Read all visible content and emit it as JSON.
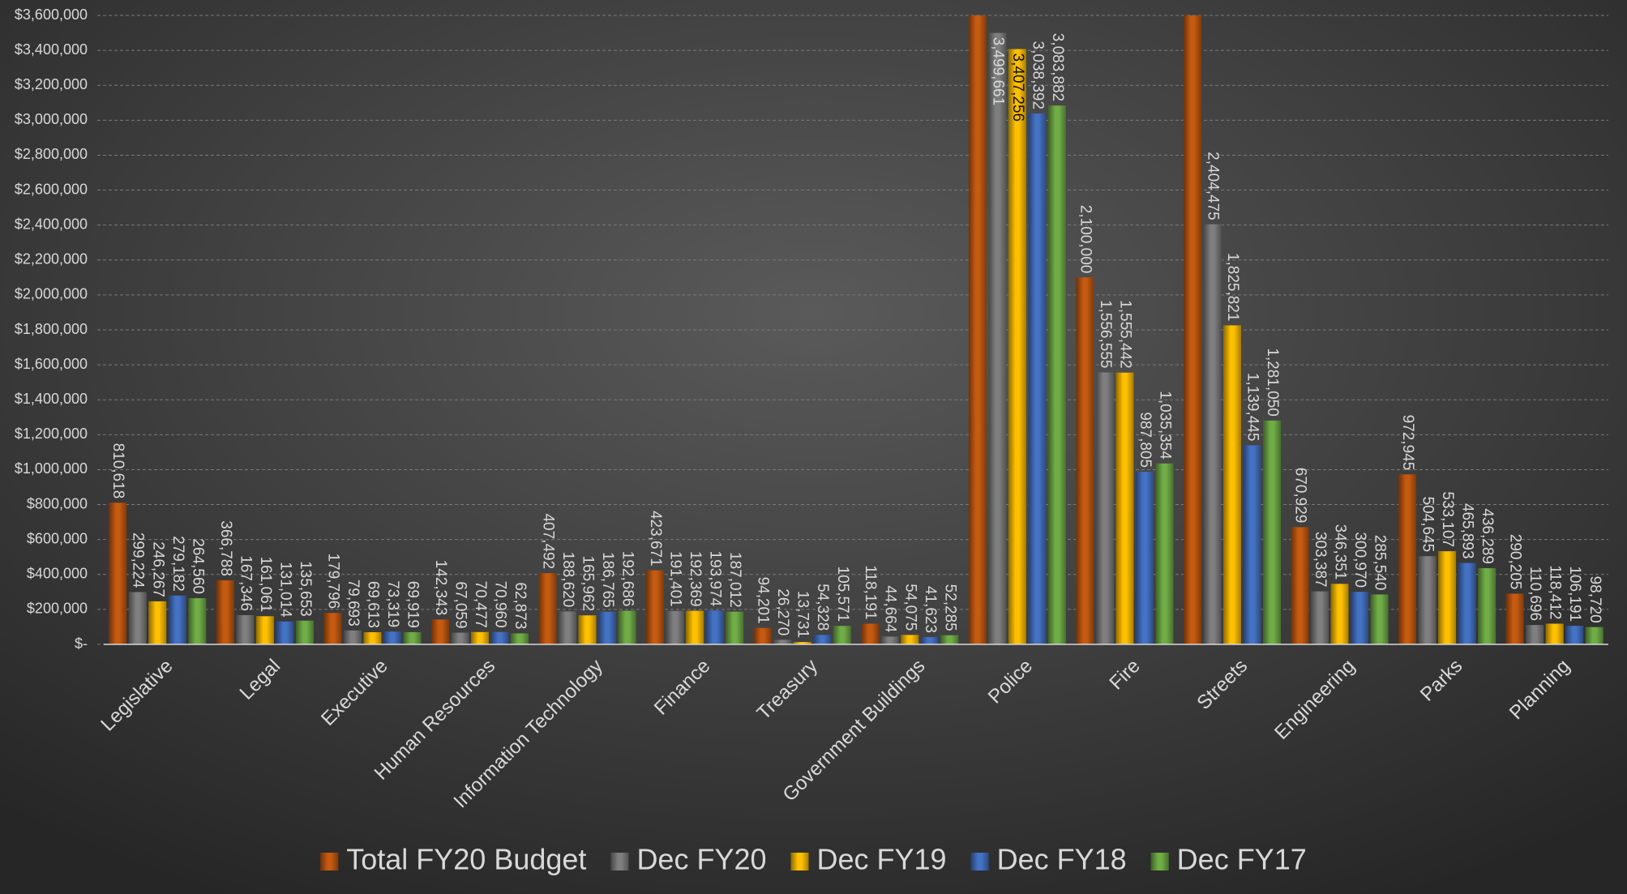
{
  "chart_data": {
    "type": "bar",
    "categories": [
      "Legislative",
      "Legal",
      "Executive",
      "Human Resources",
      "Information Technology",
      "Finance",
      "Treasury",
      "Government Buildings",
      "Police",
      "Fire",
      "Streets",
      "Engineering",
      "Parks",
      "Planning"
    ],
    "series": [
      {
        "name": "Total FY20 Budget",
        "color": "#c55a11",
        "values": [
          810618,
          366788,
          179796,
          142343,
          407492,
          423671,
          94201,
          118191,
          3700000,
          2100000,
          3700000,
          670929,
          972945,
          290205
        ],
        "value_labels": [
          "810,618",
          "366,788",
          "179,796",
          "142,343",
          "407,492",
          "423,671",
          "94,201",
          "118,191",
          null,
          "2,100,000",
          null,
          "670,929",
          "972,945",
          "290,205"
        ]
      },
      {
        "name": "Dec FY20",
        "color": "#7f7f7f",
        "values": [
          299224,
          167346,
          79693,
          67059,
          188620,
          191401,
          26270,
          44664,
          3499661,
          1556555,
          2404475,
          303387,
          504645,
          110696
        ],
        "value_labels": [
          "299,224",
          "167,346",
          "79,693",
          "67,059",
          "188,620",
          "191,401",
          "26,270",
          "44,664",
          "3,499,661",
          "1,556,555",
          "2,404,475",
          "303,387",
          "504,645",
          "110,696"
        ]
      },
      {
        "name": "Dec FY19",
        "color": "#ffc000",
        "values": [
          246267,
          161061,
          69613,
          70477,
          165962,
          192369,
          13731,
          54075,
          3407256,
          1555442,
          1825821,
          346351,
          533107,
          118412
        ],
        "value_labels": [
          "246,267",
          "161,061",
          "69,613",
          "70,477",
          "165,962",
          "192,369",
          "13,731",
          "54,075",
          "3,407,256",
          "1,555,442",
          "1,825,821",
          "346,351",
          "533,107",
          "118,412"
        ]
      },
      {
        "name": "Dec FY18",
        "color": "#4472c4",
        "values": [
          279182,
          131014,
          73319,
          70960,
          186765,
          193974,
          54328,
          41623,
          3038392,
          987805,
          1139445,
          300970,
          465893,
          106191
        ],
        "value_labels": [
          "279,182",
          "131,014",
          "73,319",
          "70,960",
          "186,765",
          "193,974",
          "54,328",
          "41,623",
          "3,038,392",
          "987,805",
          "1,139,445",
          "300,970",
          "465,893",
          "106,191"
        ]
      },
      {
        "name": "Dec FY17",
        "color": "#70ad47",
        "values": [
          264560,
          135653,
          69919,
          62873,
          192686,
          187012,
          105571,
          52285,
          3083882,
          1035354,
          1281050,
          285540,
          436289,
          98720
        ],
        "value_labels": [
          "264,560",
          "135,653",
          "69,919",
          "62,873",
          "192,686",
          "187,012",
          "105,571",
          "52,285",
          "3,083,882",
          "1,035,354",
          "1,281,050",
          "285,540",
          "436,289",
          "98,720"
        ]
      }
    ],
    "ylim": [
      0,
      3600000
    ],
    "yticks": [
      {
        "value": 0,
        "label": "$-"
      },
      {
        "value": 200000,
        "label": "$200,000"
      },
      {
        "value": 400000,
        "label": "$400,000"
      },
      {
        "value": 600000,
        "label": "$600,000"
      },
      {
        "value": 800000,
        "label": "$800,000"
      },
      {
        "value": 1000000,
        "label": "$1,000,000"
      },
      {
        "value": 1200000,
        "label": "$1,200,000"
      },
      {
        "value": 1400000,
        "label": "$1,400,000"
      },
      {
        "value": 1600000,
        "label": "$1,600,000"
      },
      {
        "value": 1800000,
        "label": "$1,800,000"
      },
      {
        "value": 2000000,
        "label": "$2,000,000"
      },
      {
        "value": 2200000,
        "label": "$2,200,000"
      },
      {
        "value": 2400000,
        "label": "$2,400,000"
      },
      {
        "value": 2600000,
        "label": "$2,600,000"
      },
      {
        "value": 2800000,
        "label": "$2,800,000"
      },
      {
        "value": 3000000,
        "label": "$3,000,000"
      },
      {
        "value": 3200000,
        "label": "$3,200,000"
      },
      {
        "value": 3400000,
        "label": "$3,400,000"
      },
      {
        "value": 3600000,
        "label": "$3,600,000"
      }
    ],
    "grid": true,
    "legend": "bottom"
  }
}
